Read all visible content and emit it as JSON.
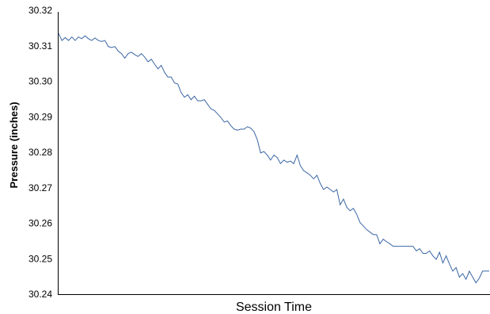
{
  "chart_data": {
    "type": "line",
    "xlabel": "Session Time",
    "ylabel": "Pressure (inches)",
    "ylim": [
      30.24,
      30.32
    ],
    "yticks": [
      "30.32",
      "30.31",
      "30.30",
      "30.29",
      "30.28",
      "30.27",
      "30.26",
      "30.25",
      "30.24"
    ],
    "grid": false,
    "line_color": "#3b66a3",
    "series": [
      {
        "values": [
          30.3135,
          30.3115,
          30.3123,
          30.3115,
          30.3125,
          30.3115,
          30.3125,
          30.312,
          30.3128,
          30.312,
          30.3115,
          30.3122,
          30.3115,
          30.3112,
          30.3115,
          30.3098,
          30.3095,
          30.3098,
          30.3085,
          30.3078,
          30.3065,
          30.3078,
          30.3082,
          30.3075,
          30.307,
          30.3078,
          30.3068,
          30.3055,
          30.3062,
          30.3048,
          30.3035,
          30.3045,
          30.3025,
          30.3012,
          30.3012,
          30.2995,
          30.2992,
          30.2968,
          30.2955,
          30.2962,
          30.2948,
          30.2958,
          30.2945,
          30.2945,
          30.2948,
          30.2935,
          30.2922,
          30.2918,
          30.2908,
          30.2898,
          30.2885,
          30.2888,
          30.2875,
          30.2865,
          30.2862,
          30.2865,
          30.2865,
          30.2872,
          30.2868,
          30.2858,
          30.2835,
          30.2798,
          30.2802,
          30.2792,
          30.2778,
          30.2792,
          30.2785,
          30.2768,
          30.2778,
          30.2772,
          30.2775,
          30.2768,
          30.2792,
          30.2762,
          30.2748,
          30.2742,
          30.2735,
          30.2725,
          30.2735,
          30.2712,
          30.2695,
          30.2702,
          30.2695,
          30.2688,
          30.2695,
          30.2652,
          30.2668,
          30.2645,
          30.2635,
          30.2642,
          30.2625,
          30.2602,
          30.2592,
          30.2582,
          30.2575,
          30.2568,
          30.2568,
          30.2542,
          30.2555,
          30.2548,
          30.2542,
          30.2535,
          30.2535,
          30.2535,
          30.2535,
          30.2535,
          30.2535,
          30.2535,
          30.2522,
          30.2528,
          30.2515,
          30.2515,
          30.2522,
          30.2508,
          30.2498,
          30.2518,
          30.2488,
          30.2508,
          30.2485,
          30.2465,
          30.2475,
          30.2448,
          30.2458,
          30.2442,
          30.2465,
          30.2448,
          30.2432,
          30.2445,
          30.2465,
          30.2465,
          30.2465
        ]
      }
    ]
  }
}
